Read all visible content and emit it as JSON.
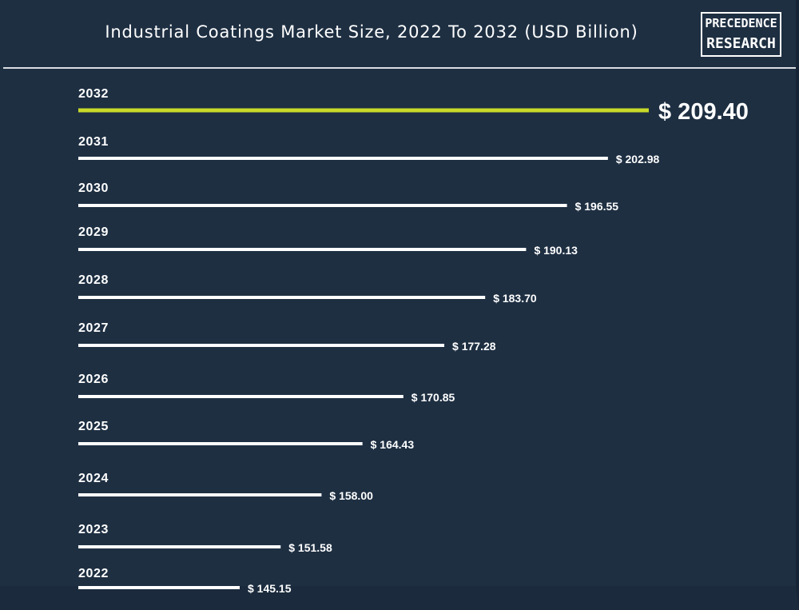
{
  "header": {
    "title": "Industrial Coatings Market Size, 2022 To 2032 (USD Billion)"
  },
  "logo": {
    "line1": "PRECEDENCE",
    "line2": "RESEARCH"
  },
  "colors": {
    "background": "#1e2f42",
    "bar": "#ffffff",
    "highlight": "#c8d92a"
  },
  "chart_data": {
    "type": "bar",
    "orientation": "horizontal",
    "title": "Industrial Coatings Market Size, 2022 To 2032 (USD Billion)",
    "categories": [
      "2032",
      "2031",
      "2030",
      "2029",
      "2028",
      "2027",
      "2026",
      "2025",
      "2024",
      "2023",
      "2022"
    ],
    "values": [
      209.4,
      202.98,
      196.55,
      190.13,
      183.7,
      177.28,
      170.85,
      164.43,
      158.0,
      151.58,
      145.15
    ],
    "value_labels": [
      "$ 209.40",
      "$ 202.98",
      "$ 196.55",
      "$ 190.13",
      "$ 183.70",
      "$ 177.28",
      "$ 170.85",
      "$ 164.43",
      "$ 158.00",
      "$ 151.58",
      "$ 145.15"
    ],
    "highlight_category": "2032",
    "xlabel": "",
    "ylabel": ""
  }
}
